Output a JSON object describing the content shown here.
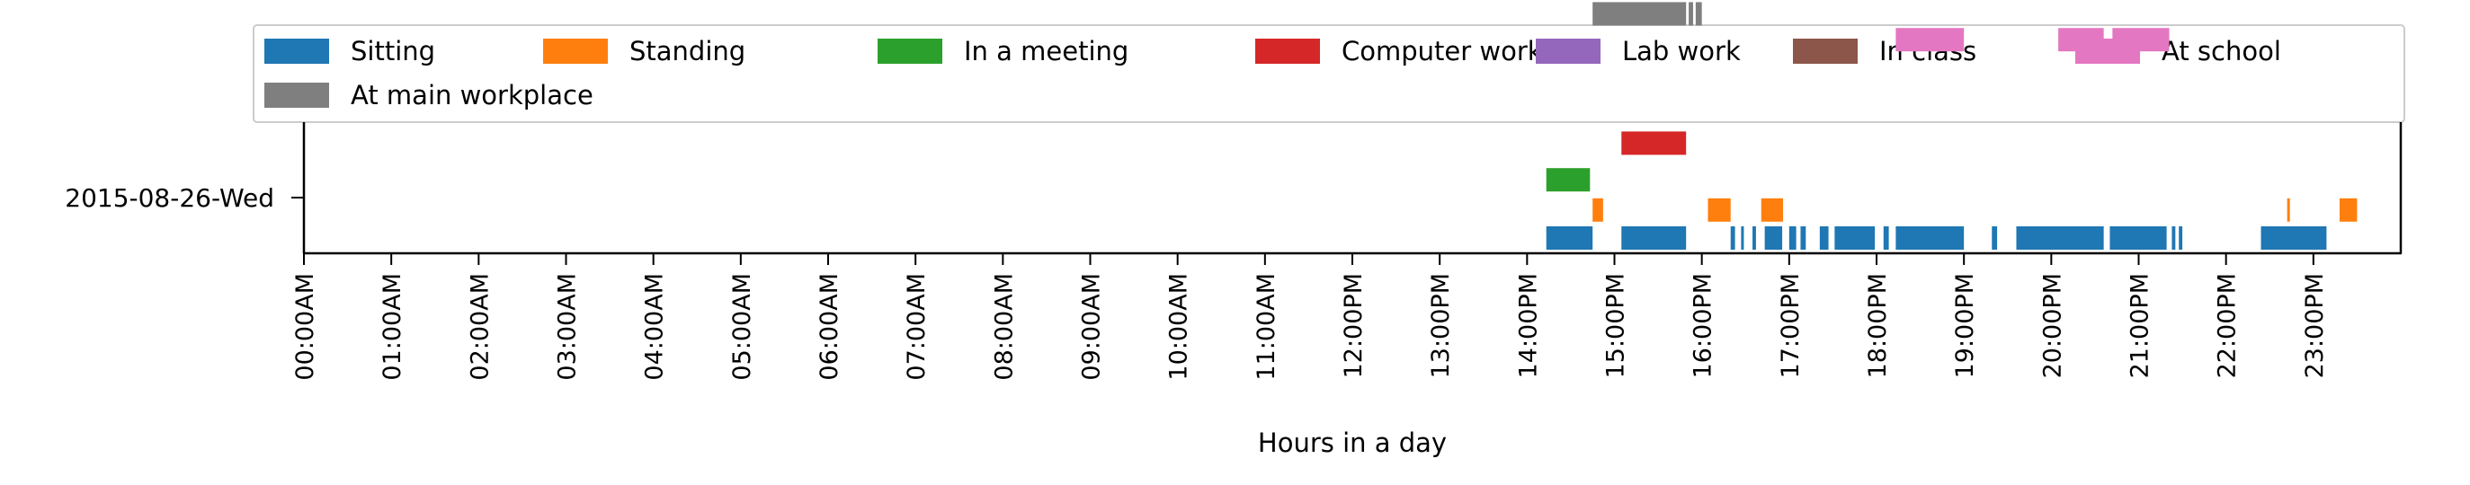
{
  "chart_data": {
    "type": "timeline",
    "xlabel": "Hours in a day",
    "ylabel": "",
    "xlim": [
      0,
      24
    ],
    "grid": false,
    "legend_placement": "top",
    "day_label": "2015-08-26-Wed",
    "x_tick_labels": [
      "00:00AM",
      "01:00AM",
      "02:00AM",
      "03:00AM",
      "04:00AM",
      "05:00AM",
      "06:00AM",
      "07:00AM",
      "08:00AM",
      "09:00AM",
      "10:00AM",
      "11:00AM",
      "12:00PM",
      "13:00PM",
      "14:00PM",
      "15:00PM",
      "16:00PM",
      "17:00PM",
      "18:00PM",
      "19:00PM",
      "20:00PM",
      "21:00PM",
      "22:00PM",
      "23:00PM"
    ],
    "series": [
      {
        "name": "Sitting",
        "color": "#1f77b4",
        "level": 0,
        "intervals": [
          [
            14.22,
            14.75
          ],
          [
            15.08,
            15.82
          ],
          [
            16.33,
            16.38
          ],
          [
            16.45,
            16.48
          ],
          [
            16.58,
            16.62
          ],
          [
            16.72,
            16.92
          ],
          [
            17.0,
            17.08
          ],
          [
            17.13,
            17.19
          ],
          [
            17.35,
            17.45
          ],
          [
            17.52,
            17.98
          ],
          [
            18.08,
            18.14
          ],
          [
            18.22,
            19.0
          ],
          [
            19.32,
            19.38
          ],
          [
            19.6,
            20.6
          ],
          [
            20.67,
            21.32
          ],
          [
            21.38,
            21.42
          ],
          [
            21.46,
            21.5
          ],
          [
            22.4,
            23.15
          ]
        ]
      },
      {
        "name": "Standing",
        "color": "#ff7f0e",
        "level": 0.65,
        "intervals": [
          [
            14.75,
            14.87
          ],
          [
            16.07,
            16.33
          ],
          [
            16.68,
            16.93
          ],
          [
            22.7,
            22.73
          ],
          [
            23.3,
            23.5
          ]
        ]
      },
      {
        "name": "In a meeting",
        "color": "#2ca02c",
        "level": 1.35,
        "intervals": [
          [
            14.22,
            14.72
          ]
        ]
      },
      {
        "name": "Computer work",
        "color": "#d62728",
        "level": 2.2,
        "intervals": [
          [
            15.08,
            15.82
          ]
        ]
      },
      {
        "name": "Lab work",
        "color": "#9467bd",
        "level": 3.0,
        "intervals": []
      },
      {
        "name": "In class",
        "color": "#8c564b",
        "level": 3.8,
        "intervals": []
      },
      {
        "name": "At school",
        "color": "#e377c2",
        "level": 4.6,
        "intervals": [
          [
            18.22,
            19.0
          ],
          [
            20.08,
            20.6
          ],
          [
            20.7,
            21.35
          ]
        ]
      },
      {
        "name": "At main workplace",
        "color": "#7f7f7f",
        "level": 5.2,
        "intervals": [
          [
            14.75,
            15.82
          ],
          [
            15.85,
            15.9
          ],
          [
            15.93,
            16.0
          ]
        ]
      }
    ]
  }
}
